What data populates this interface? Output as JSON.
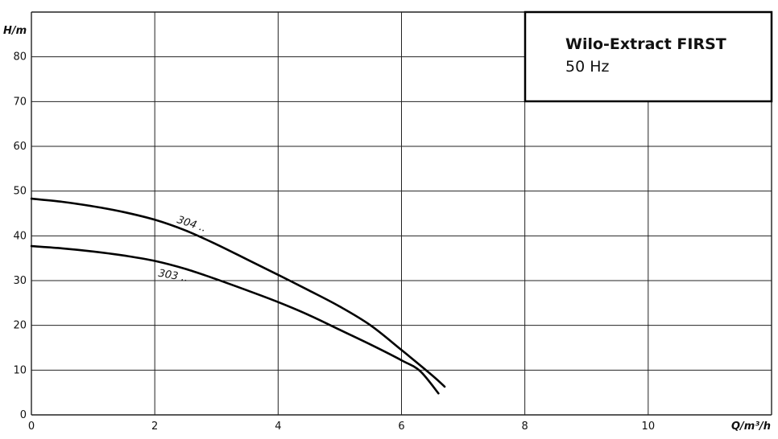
{
  "chart_data": {
    "type": "line",
    "title": "Wilo-Extract FIRST",
    "subtitle": "50 Hz",
    "xlabel": "Q/m³/h",
    "ylabel": "H/m",
    "xlim": [
      0,
      12
    ],
    "ylim": [
      0,
      90
    ],
    "x_ticks": [
      0,
      2,
      4,
      6,
      8,
      10
    ],
    "y_ticks": [
      0,
      10,
      20,
      30,
      40,
      50,
      60,
      70,
      80
    ],
    "grid": true,
    "series": [
      {
        "name": "304 ..",
        "x": [
          0,
          0.5,
          1,
          1.5,
          2,
          2.5,
          3,
          3.5,
          4,
          4.5,
          5,
          5.5,
          6,
          6.5,
          6.7
        ],
        "y": [
          48.3,
          47.6,
          46.6,
          45.3,
          43.6,
          41.2,
          38.1,
          34.7,
          31.3,
          27.8,
          24.2,
          20.0,
          14.5,
          8.8,
          6.3
        ]
      },
      {
        "name": "303 ..",
        "x": [
          0,
          0.5,
          1,
          1.5,
          2,
          2.5,
          3,
          3.5,
          4,
          4.5,
          5,
          5.5,
          6,
          6.3,
          6.6
        ],
        "y": [
          37.7,
          37.2,
          36.5,
          35.6,
          34.4,
          32.6,
          30.3,
          27.8,
          25.2,
          22.3,
          19.0,
          15.7,
          12.2,
          9.8,
          4.8
        ]
      }
    ],
    "colors": {
      "line": "#000000",
      "grid": "#222222",
      "background": "#ffffff"
    }
  }
}
